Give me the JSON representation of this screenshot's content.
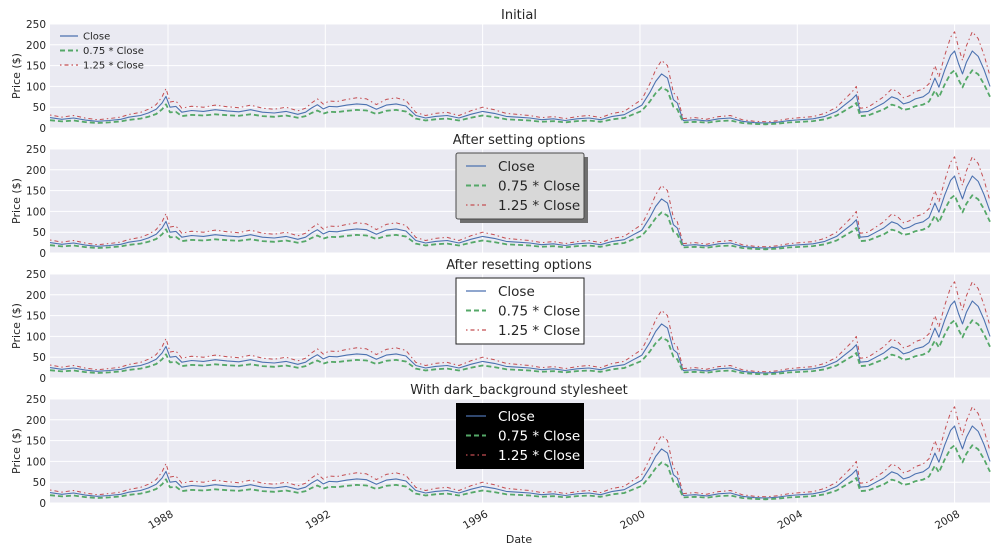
{
  "figure": {
    "xlabel": "Date",
    "ylabel": "Price ($)",
    "years": [
      "1988",
      "1992",
      "1996",
      "2000",
      "2004",
      "2008"
    ],
    "yticks": [
      "0",
      "50",
      "100",
      "150",
      "200",
      "250"
    ]
  },
  "colors": {
    "axes_bg": "#eaeaf2",
    "grid": "#ffffff",
    "close": "#4c72b0",
    "close75": "#55a868",
    "close125": "#c44e52",
    "dark_legend_bg": "#000000"
  },
  "chart_data": {
    "type": "line",
    "xlim": [
      1985.0,
      2008.9
    ],
    "ylim": [
      0,
      250
    ],
    "x_ticks": [
      1988,
      1992,
      1996,
      2000,
      2004,
      2008
    ],
    "y_ticks": [
      0,
      50,
      100,
      150,
      200,
      250
    ],
    "close_points": [
      [
        1985.0,
        25
      ],
      [
        1985.3,
        21
      ],
      [
        1985.6,
        24
      ],
      [
        1985.9,
        19
      ],
      [
        1986.2,
        16
      ],
      [
        1986.5,
        18
      ],
      [
        1986.8,
        21
      ],
      [
        1987.0,
        26
      ],
      [
        1987.3,
        30
      ],
      [
        1987.5,
        36
      ],
      [
        1987.7,
        45
      ],
      [
        1987.85,
        60
      ],
      [
        1987.95,
        76
      ],
      [
        1988.05,
        50
      ],
      [
        1988.2,
        52
      ],
      [
        1988.35,
        38
      ],
      [
        1988.6,
        42
      ],
      [
        1988.9,
        40
      ],
      [
        1989.2,
        44
      ],
      [
        1989.5,
        41
      ],
      [
        1989.8,
        39
      ],
      [
        1990.1,
        44
      ],
      [
        1990.4,
        38
      ],
      [
        1990.7,
        36
      ],
      [
        1991.0,
        40
      ],
      [
        1991.3,
        33
      ],
      [
        1991.5,
        38
      ],
      [
        1991.65,
        48
      ],
      [
        1991.8,
        56
      ],
      [
        1991.95,
        46
      ],
      [
        1992.1,
        52
      ],
      [
        1992.3,
        51
      ],
      [
        1992.55,
        55
      ],
      [
        1992.8,
        58
      ],
      [
        1993.05,
        56
      ],
      [
        1993.3,
        45
      ],
      [
        1993.55,
        55
      ],
      [
        1993.8,
        58
      ],
      [
        1994.05,
        53
      ],
      [
        1994.3,
        30
      ],
      [
        1994.55,
        24
      ],
      [
        1994.8,
        28
      ],
      [
        1995.1,
        30
      ],
      [
        1995.4,
        24
      ],
      [
        1995.7,
        33
      ],
      [
        1996.0,
        40
      ],
      [
        1996.3,
        35
      ],
      [
        1996.6,
        28
      ],
      [
        1996.9,
        26
      ],
      [
        1997.2,
        24
      ],
      [
        1997.5,
        20
      ],
      [
        1997.8,
        22
      ],
      [
        1998.1,
        18
      ],
      [
        1998.4,
        22
      ],
      [
        1998.7,
        24
      ],
      [
        1999.0,
        20
      ],
      [
        1999.3,
        28
      ],
      [
        1999.6,
        32
      ],
      [
        1999.85,
        45
      ],
      [
        2000.05,
        55
      ],
      [
        2000.25,
        85
      ],
      [
        2000.4,
        112
      ],
      [
        2000.55,
        130
      ],
      [
        2000.7,
        120
      ],
      [
        2000.85,
        68
      ],
      [
        2000.95,
        60
      ],
      [
        2001.1,
        18
      ],
      [
        2001.4,
        20
      ],
      [
        2001.7,
        17
      ],
      [
        2002.0,
        22
      ],
      [
        2002.3,
        24
      ],
      [
        2002.6,
        16
      ],
      [
        2002.9,
        13
      ],
      [
        2003.2,
        12
      ],
      [
        2003.5,
        14
      ],
      [
        2003.8,
        18
      ],
      [
        2004.1,
        20
      ],
      [
        2004.4,
        22
      ],
      [
        2004.7,
        28
      ],
      [
        2005.0,
        40
      ],
      [
        2005.2,
        55
      ],
      [
        2005.4,
        70
      ],
      [
        2005.5,
        80
      ],
      [
        2005.6,
        38
      ],
      [
        2005.8,
        40
      ],
      [
        2006.0,
        50
      ],
      [
        2006.2,
        60
      ],
      [
        2006.4,
        75
      ],
      [
        2006.55,
        70
      ],
      [
        2006.7,
        58
      ],
      [
        2006.85,
        62
      ],
      [
        2007.0,
        70
      ],
      [
        2007.2,
        75
      ],
      [
        2007.35,
        85
      ],
      [
        2007.5,
        120
      ],
      [
        2007.6,
        98
      ],
      [
        2007.75,
        140
      ],
      [
        2007.9,
        175
      ],
      [
        2008.0,
        185
      ],
      [
        2008.1,
        155
      ],
      [
        2008.2,
        130
      ],
      [
        2008.3,
        158
      ],
      [
        2008.45,
        185
      ],
      [
        2008.6,
        172
      ],
      [
        2008.75,
        140
      ],
      [
        2008.9,
        100
      ]
    ],
    "series": [
      {
        "name": "Close",
        "multiplier": 1.0
      },
      {
        "name": "0.75 * Close",
        "multiplier": 0.75
      },
      {
        "name": "1.25 * Close",
        "multiplier": 1.25
      }
    ]
  },
  "panels": [
    {
      "title": "Initial",
      "legend_style": "plain",
      "legend_labels": [
        "Close",
        "0.75 * Close",
        "1.25 * Close"
      ]
    },
    {
      "title": "After setting options",
      "legend_style": "shadow",
      "legend_labels": [
        "Close",
        "0.75 * Close",
        "1.25 * Close"
      ]
    },
    {
      "title": "After resetting options",
      "legend_style": "boxed",
      "legend_labels": [
        "Close",
        "0.75 * Close",
        "1.25 * Close"
      ]
    },
    {
      "title": "With dark_background stylesheet",
      "legend_style": "dark",
      "legend_labels": [
        "Close",
        "0.75 * Close",
        "1.25 * Close"
      ]
    }
  ]
}
